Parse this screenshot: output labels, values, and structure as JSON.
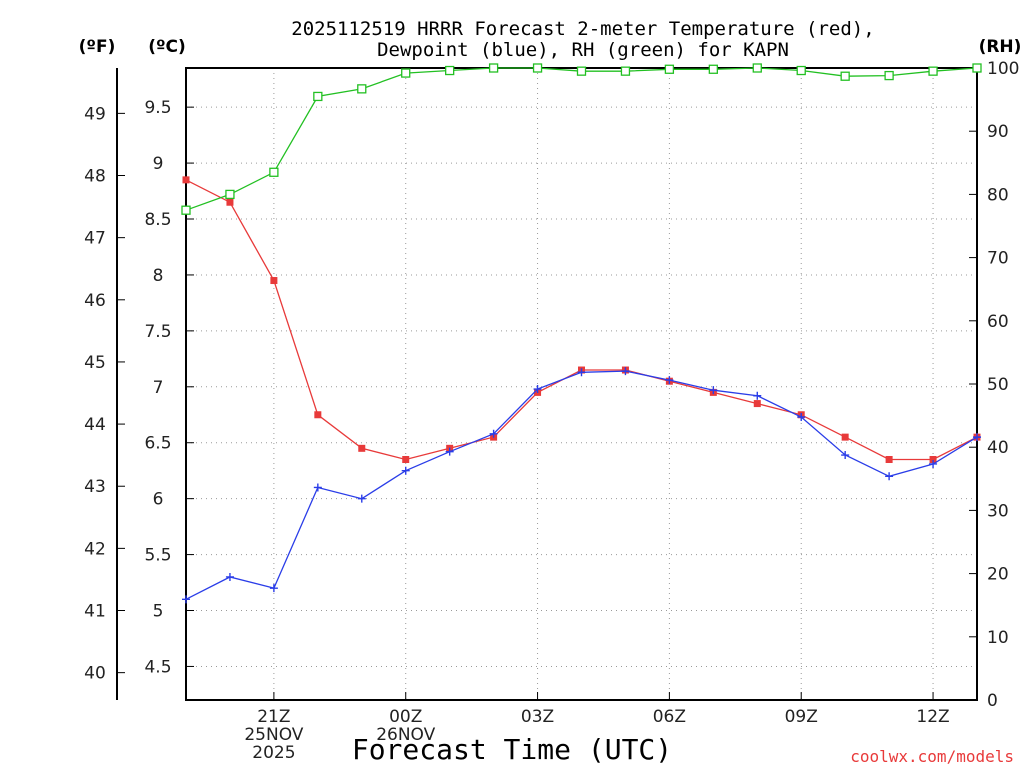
{
  "chart_data": {
    "type": "line",
    "title_line1": "2025112519 HRRR Forecast 2-meter Temperature (red),",
    "title_line2": "Dewpoint (blue), RH (green) for KAPN",
    "xlabel": "Forecast Time (UTC)",
    "credit": "coolwx.com/models",
    "units": {
      "fahrenheit": "(ºF)",
      "celsius": "(ºC)",
      "rh": "(RH)"
    },
    "x_hours": [
      0,
      1,
      2,
      3,
      4,
      5,
      6,
      7,
      8,
      9,
      10,
      11,
      12,
      13,
      14,
      15,
      16,
      17,
      18
    ],
    "xlim": [
      0,
      18
    ],
    "x_ticks": [
      {
        "x": 2,
        "lines": [
          "21Z",
          "25NOV",
          "2025"
        ]
      },
      {
        "x": 5,
        "lines": [
          "00Z",
          "26NOV"
        ]
      },
      {
        "x": 8,
        "lines": [
          "03Z"
        ]
      },
      {
        "x": 11,
        "lines": [
          "06Z"
        ]
      },
      {
        "x": 14,
        "lines": [
          "09Z"
        ]
      },
      {
        "x": 17,
        "lines": [
          "12Z"
        ]
      }
    ],
    "celsius_axis": {
      "ylim": [
        4.2,
        9.85
      ],
      "ticks": [
        4.5,
        5,
        5.5,
        6,
        6.5,
        7,
        7.5,
        8,
        8.5,
        9,
        9.5
      ],
      "tick_labels": [
        "4.5",
        "5",
        "5.5",
        "6",
        "6.5",
        "7",
        "7.5",
        "8",
        "8.5",
        "9",
        "9.5"
      ]
    },
    "fahrenheit_axis": {
      "ticks": [
        40,
        41,
        42,
        43,
        44,
        45,
        46,
        47,
        48,
        49
      ]
    },
    "rh_axis": {
      "ylim": [
        0,
        100
      ],
      "ticks": [
        0,
        10,
        20,
        30,
        40,
        50,
        60,
        70,
        80,
        90,
        100
      ]
    },
    "series": [
      {
        "name": "Temperature",
        "color": "#e83a3a",
        "marker": "filled-square",
        "axis": "celsius",
        "values": [
          8.85,
          8.65,
          7.95,
          6.75,
          6.45,
          6.35,
          6.45,
          6.55,
          6.95,
          7.15,
          7.15,
          7.05,
          6.95,
          6.85,
          6.75,
          6.55,
          6.35,
          6.35,
          6.55
        ]
      },
      {
        "name": "Dewpoint",
        "color": "#2a3de8",
        "marker": "plus",
        "axis": "celsius",
        "values": [
          5.1,
          5.3,
          5.2,
          6.1,
          6.0,
          6.25,
          6.42,
          6.58,
          6.98,
          7.13,
          7.14,
          7.06,
          6.97,
          6.92,
          6.73,
          6.39,
          6.2,
          6.31,
          6.55
        ]
      },
      {
        "name": "RH",
        "color": "#22c022",
        "marker": "open-square",
        "axis": "rh",
        "values": [
          77.5,
          80,
          83.5,
          95.5,
          96.7,
          99.2,
          99.6,
          100,
          100,
          99.5,
          99.5,
          99.8,
          99.8,
          100,
          99.6,
          98.7,
          98.8,
          99.5,
          100
        ]
      }
    ]
  }
}
